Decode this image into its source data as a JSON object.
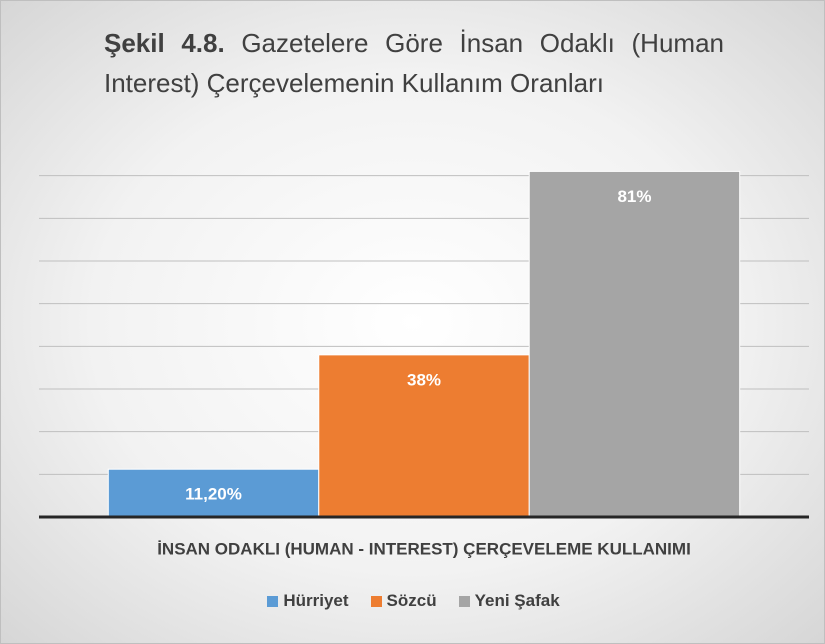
{
  "chart_data": {
    "type": "bar",
    "title_label": "Şekil 4.8.",
    "title": "Gazetelere Göre İnsan Odaklı (Human Interest) Çerçevelemenin Kullanım Oranları",
    "categories": [
      "İNSAN ODAKLI (HUMAN - INTEREST) ÇERÇEVELEME KULLANIMI"
    ],
    "series": [
      {
        "name": "Hürriyet",
        "color": "#5b9bd5",
        "values": [
          11.2
        ],
        "value_labels": [
          "11,20%"
        ]
      },
      {
        "name": "Sözcü",
        "color": "#ed7d31",
        "values": [
          38
        ],
        "value_labels": [
          "38%"
        ]
      },
      {
        "name": "Yeni Şafak",
        "color": "#a5a5a5",
        "values": [
          81
        ],
        "value_labels": [
          "81%"
        ]
      }
    ],
    "ylim": [
      0,
      90
    ],
    "yticks": [
      0,
      10,
      20,
      30,
      40,
      50,
      60,
      70,
      80
    ],
    "grid": true,
    "legend": "bottom"
  }
}
